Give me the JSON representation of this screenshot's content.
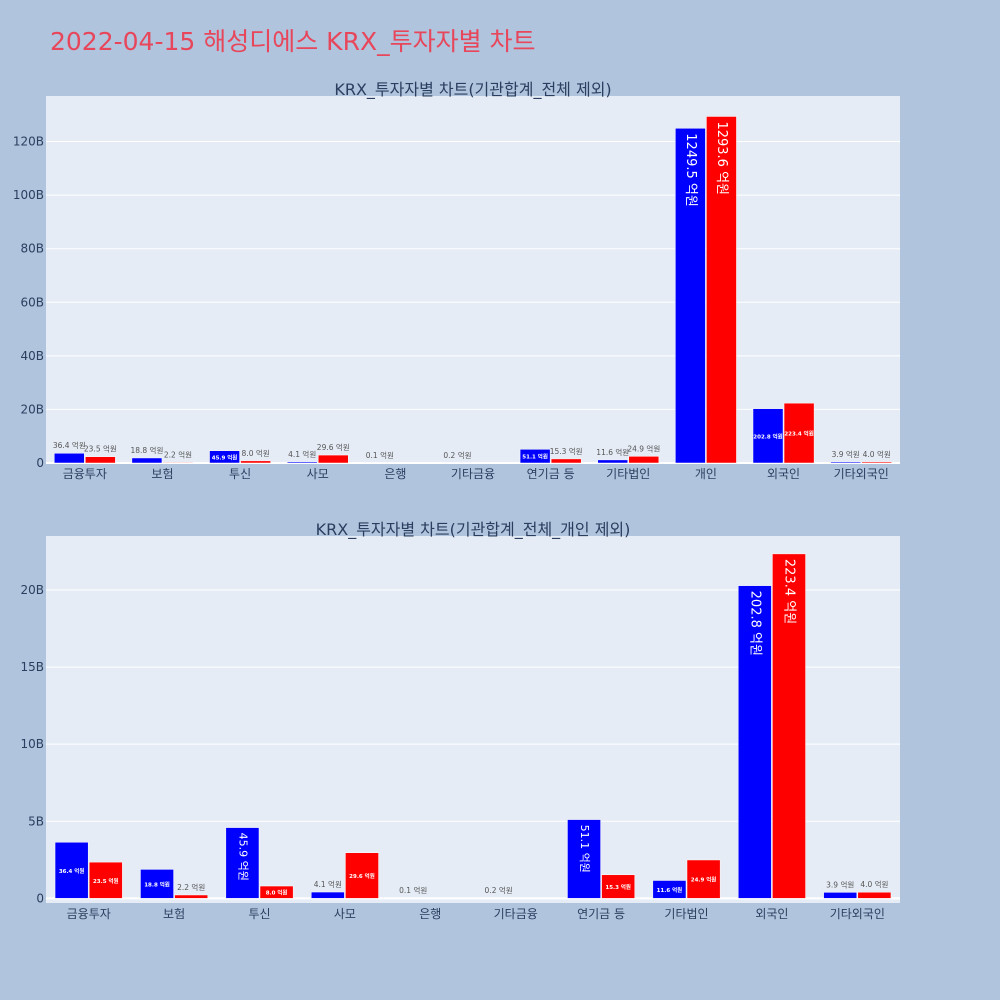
{
  "page": {
    "title": "2022-04-15 해성디에스 KRX_투자자별 차트"
  },
  "chart_data": [
    {
      "type": "bar",
      "title": "KRX_투자자별 차트(기관합계_전체 제외)",
      "categories": [
        "금융투자",
        "보험",
        "투신",
        "사모",
        "은행",
        "기타금융",
        "연기금 등",
        "기타법인",
        "개인",
        "외국인",
        "기타외국인"
      ],
      "ytick_labels": [
        "0",
        "20B",
        "40B",
        "60B",
        "80B",
        "100B",
        "120B"
      ],
      "ylim": [
        0,
        137
      ],
      "yticks": [
        0,
        20,
        40,
        60,
        80,
        100,
        120
      ],
      "grid": true,
      "series": [
        {
          "color": "#0000ff",
          "values": [
            3.64,
            1.88,
            4.59,
            0.41,
            0.01,
            0.02,
            5.11,
            1.16,
            124.95,
            20.28,
            0.39
          ],
          "labels": [
            "36.4 억원",
            "18.8 억원",
            "45.9 억원",
            "4.1 억원",
            "0.1 억원",
            "0.2 억원",
            "51.1 억원",
            "11.6 억원",
            "1249.5 억원",
            "202.8 억원",
            "3.9 억원"
          ]
        },
        {
          "color": "#ff0000",
          "values": [
            2.35,
            0.22,
            0.8,
            2.96,
            0,
            0,
            1.53,
            2.49,
            129.36,
            22.34,
            0.4
          ],
          "labels": [
            "23.5 억원",
            "2.2 억원",
            "8.0 억원",
            "29.6 억원",
            "",
            "",
            "15.3 억원",
            "24.9 억원",
            "1293.6 억원",
            "223.4 억원",
            "4.0 억원"
          ]
        }
      ]
    },
    {
      "type": "bar",
      "title": "KRX_투자자별 차트(기관합계_전체_개인 제외)",
      "categories": [
        "금융투자",
        "보험",
        "투신",
        "사모",
        "은행",
        "기타금융",
        "연기금 등",
        "기타법인",
        "외국인",
        "기타외국인"
      ],
      "ytick_labels": [
        "0",
        "5B",
        "10B",
        "15B",
        "20B"
      ],
      "ylim": [
        -0.3,
        23.5
      ],
      "yticks": [
        0,
        5,
        10,
        15,
        20
      ],
      "grid": true,
      "series": [
        {
          "color": "#0000ff",
          "values": [
            3.64,
            1.88,
            4.59,
            0.41,
            0.01,
            0.02,
            5.11,
            1.16,
            20.28,
            0.39
          ],
          "labels": [
            "36.4 억원",
            "18.8 억원",
            "45.9 억원",
            "4.1 억원",
            "0.1 억원",
            "0.2 억원",
            "51.1 억원",
            "11.6 억원",
            "202.8 억원",
            "3.9 억원"
          ]
        },
        {
          "color": "#ff0000",
          "values": [
            2.35,
            0.22,
            0.8,
            2.96,
            0,
            0,
            1.53,
            2.49,
            22.34,
            0.4
          ],
          "labels": [
            "23.5 억원",
            "2.2 억원",
            "8.0 억원",
            "29.6 억원",
            "",
            "",
            "15.3 억원",
            "24.9 억원",
            "223.4 억원",
            "4.0 억원"
          ]
        }
      ]
    }
  ]
}
